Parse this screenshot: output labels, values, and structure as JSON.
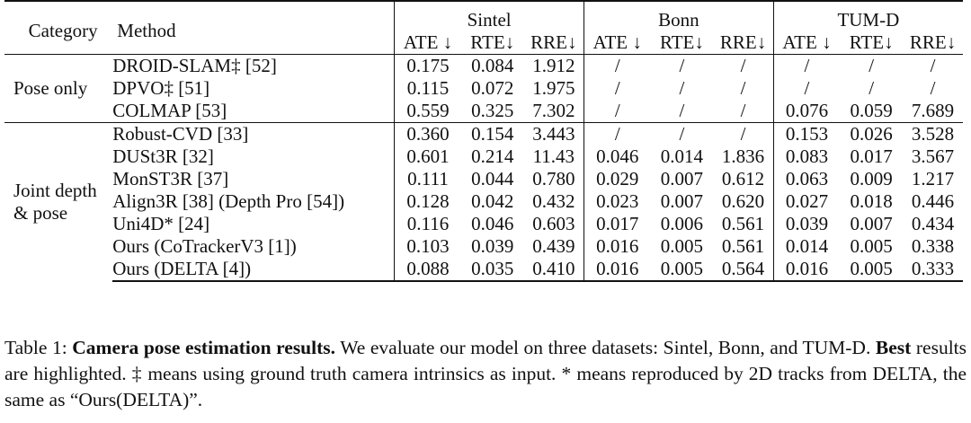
{
  "headers": {
    "category": "Category",
    "method": "Method",
    "datasets": [
      "Sintel",
      "Bonn",
      "TUM-D"
    ],
    "metrics": [
      "ATE ↓",
      "RTE↓",
      "RRE↓",
      "ATE ↓",
      "RTE↓",
      "RRE↓",
      "ATE ↓",
      "RTE↓",
      "RRE↓"
    ]
  },
  "groups": [
    {
      "category_lines": [
        "Pose only"
      ],
      "rows": [
        {
          "method": "DROID-SLAM‡ [52]",
          "values": [
            "0.175",
            "0.084",
            "1.912",
            "/",
            "/",
            "/",
            "/",
            "/",
            "/"
          ]
        },
        {
          "method": "DPVO‡ [51]",
          "values": [
            "0.115",
            "0.072",
            "1.975",
            "/",
            "/",
            "/",
            "/",
            "/",
            "/"
          ]
        },
        {
          "method": "COLMAP [53]",
          "values": [
            "0.559",
            "0.325",
            "7.302",
            "/",
            "/",
            "/",
            "0.076",
            "0.059",
            "7.689"
          ]
        }
      ]
    },
    {
      "category_lines": [
        "Joint depth",
        "& pose"
      ],
      "rows": [
        {
          "method": "Robust-CVD [33]",
          "values": [
            "0.360",
            "0.154",
            "3.443",
            "/",
            "/",
            "/",
            "0.153",
            "0.026",
            "3.528"
          ]
        },
        {
          "method": "DUSt3R [32]",
          "values": [
            "0.601",
            "0.214",
            "11.43",
            "0.046",
            "0.014",
            "1.836",
            "0.083",
            "0.017",
            "3.567"
          ]
        },
        {
          "method": "MonST3R [37]",
          "values": [
            "0.111",
            "0.044",
            "0.780",
            "0.029",
            "0.007",
            "0.612",
            "0.063",
            "0.009",
            "1.217"
          ]
        },
        {
          "method": "Align3R [38] (Depth Pro [54])",
          "values": [
            "0.128",
            "0.042",
            "0.432",
            "0.023",
            "0.007",
            "0.620",
            "0.027",
            "0.018",
            "0.446"
          ]
        },
        {
          "method": "Uni4D* [24]",
          "values": [
            "0.116",
            "0.046",
            "0.603",
            "0.017",
            "0.006",
            "0.561",
            "0.039",
            "0.007",
            "0.434"
          ]
        },
        {
          "method": "Ours (CoTrackerV3 [1])",
          "values": [
            "0.103",
            "0.039",
            "0.439",
            "0.016",
            "0.005",
            "0.561",
            "0.014",
            "0.005",
            "0.338"
          ],
          "bold": [
            false,
            false,
            false,
            false,
            true,
            true,
            true,
            true,
            false
          ]
        },
        {
          "method": "Ours (DELTA [4])",
          "values": [
            "0.088",
            "0.035",
            "0.410",
            "0.016",
            "0.005",
            "0.564",
            "0.016",
            "0.005",
            "0.333"
          ],
          "bold": [
            true,
            true,
            true,
            true,
            false,
            false,
            false,
            false,
            true
          ]
        }
      ]
    }
  ],
  "caption": {
    "label": "Table 1:",
    "title": "Camera pose estimation results.",
    "text1": "We evaluate our model on three datasets: Sintel, Bonn, and TUM-D.",
    "best_word": "Best",
    "text2": "results are highlighted. ‡ means using ground truth camera intrinsics as input. * means reproduced by 2D tracks from DELTA, the same as “Ours(DELTA)”."
  }
}
